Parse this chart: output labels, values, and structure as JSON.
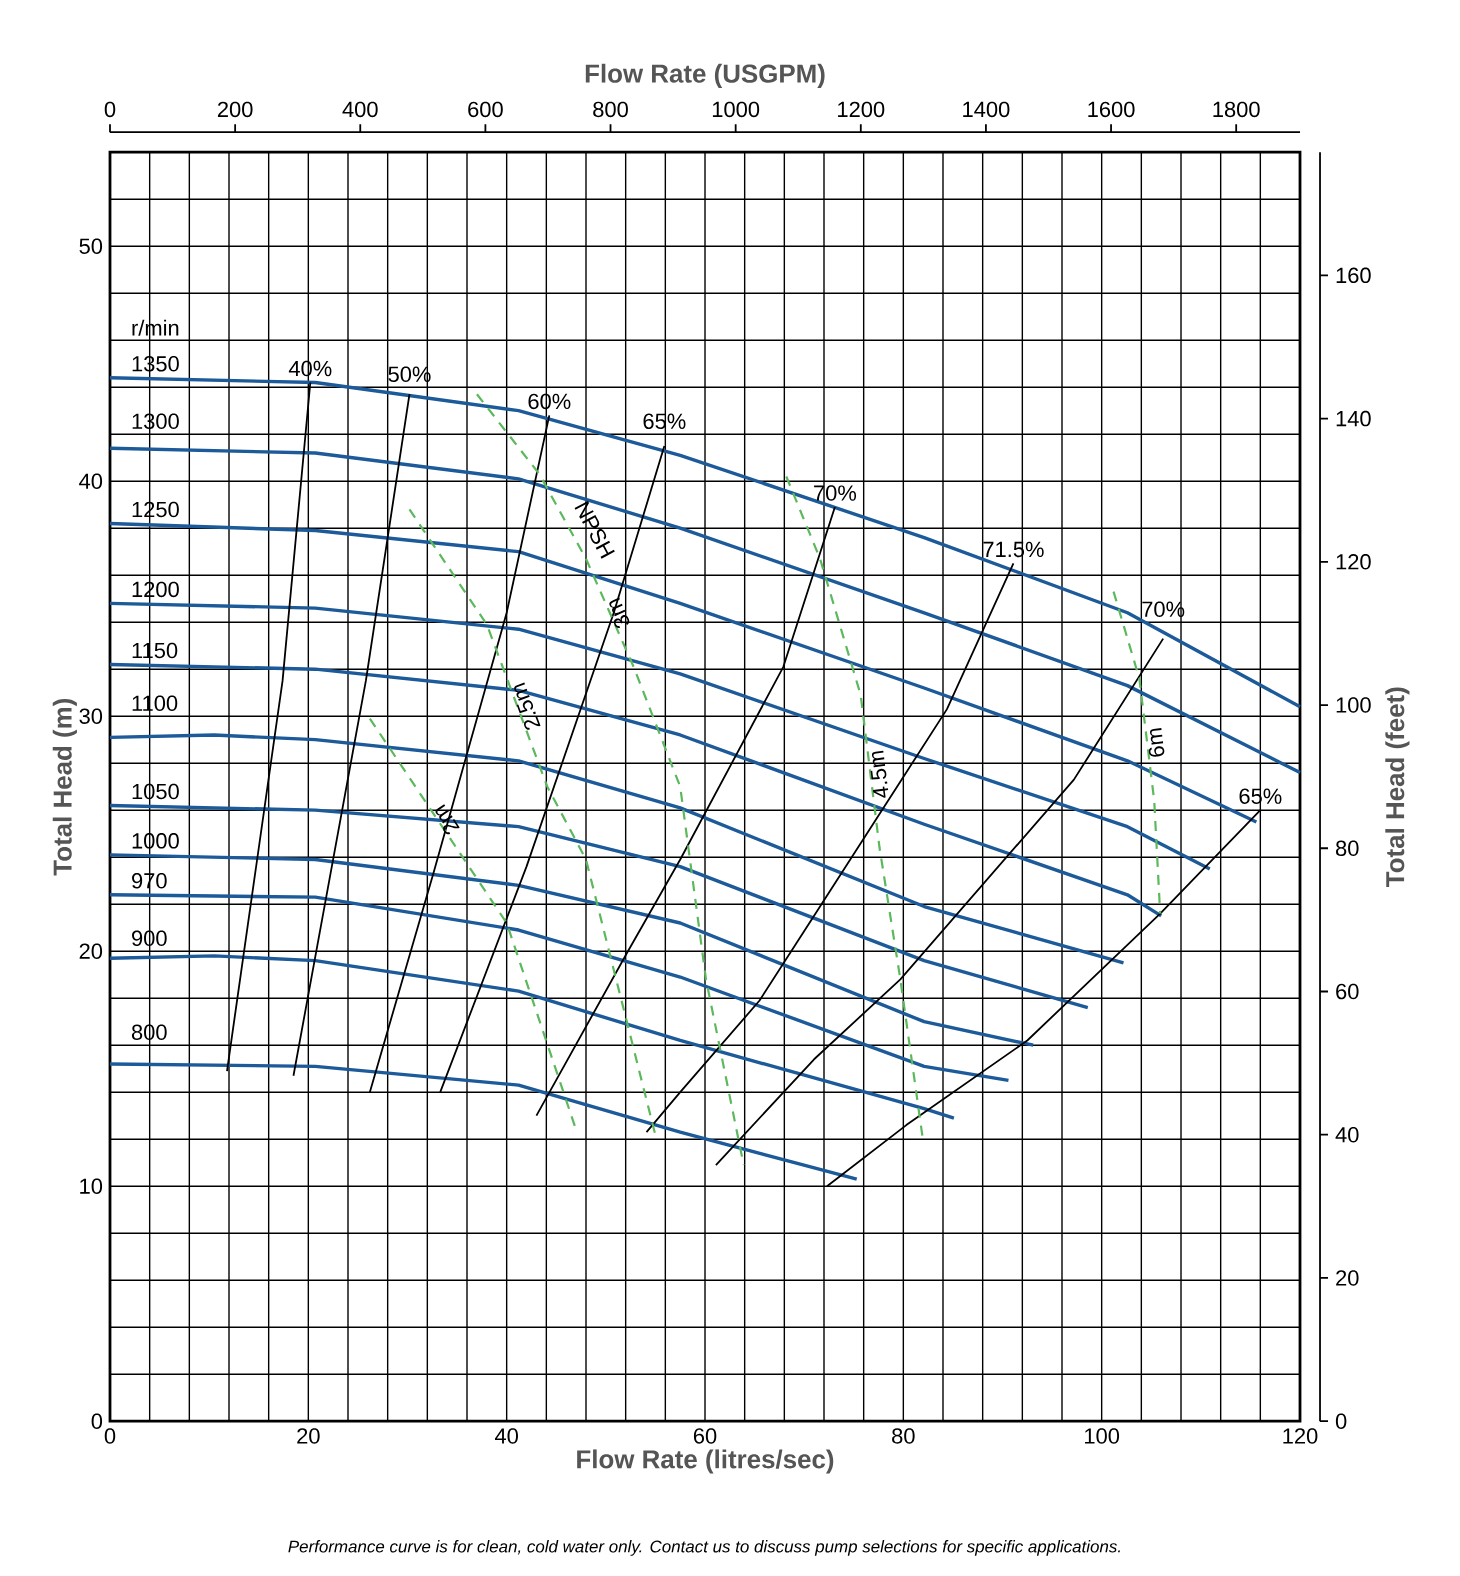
{
  "chart_data": {
    "type": "line",
    "xlabel": "Flow Rate (litres/sec)",
    "ylabel": "Total Head (m)",
    "y2label": "Total Head (feet)",
    "x2label": "Flow Rate (USGPM)",
    "xlim": [
      0,
      120
    ],
    "ylim": [
      0,
      54
    ],
    "y2lim": [
      0,
      177.2
    ],
    "x2lim": [
      0,
      1902
    ],
    "xticks": [
      0,
      {
        "value": 4,
        "label": null
      },
      {
        "value": 8,
        "label": null
      },
      {
        "value": 12,
        "label": null
      },
      {
        "value": 16,
        "label": null
      },
      20,
      {
        "value": 24,
        "label": null
      },
      {
        "value": 28,
        "label": null
      },
      {
        "value": 32,
        "label": null
      },
      {
        "value": 36,
        "label": null
      },
      40,
      {
        "value": 44,
        "label": null
      },
      {
        "value": 48,
        "label": null
      },
      {
        "value": 52,
        "label": null
      },
      {
        "value": 56,
        "label": null
      },
      60,
      {
        "value": 64,
        "label": null
      },
      {
        "value": 68,
        "label": null
      },
      {
        "value": 72,
        "label": null
      },
      {
        "value": 76,
        "label": null
      },
      80,
      {
        "value": 84,
        "label": null
      },
      {
        "value": 88,
        "label": null
      },
      {
        "value": 92,
        "label": null
      },
      {
        "value": 96,
        "label": null
      },
      100,
      {
        "value": 104,
        "label": null
      },
      {
        "value": 108,
        "label": null
      },
      {
        "value": 112,
        "label": null
      },
      {
        "value": 116,
        "label": null
      },
      120
    ],
    "yticks": [
      0,
      {
        "value": 2,
        "label": null
      },
      {
        "value": 4,
        "label": null
      },
      {
        "value": 6,
        "label": null
      },
      {
        "value": 8,
        "label": null
      },
      10,
      {
        "value": 12,
        "label": null
      },
      {
        "value": 14,
        "label": null
      },
      {
        "value": 16,
        "label": null
      },
      {
        "value": 18,
        "label": null
      },
      20,
      {
        "value": 22,
        "label": null
      },
      {
        "value": 24,
        "label": null
      },
      {
        "value": 26,
        "label": null
      },
      {
        "value": 28,
        "label": null
      },
      30,
      {
        "value": 32,
        "label": null
      },
      {
        "value": 34,
        "label": null
      },
      {
        "value": 36,
        "label": null
      },
      {
        "value": 38,
        "label": null
      },
      40,
      {
        "value": 42,
        "label": null
      },
      {
        "value": 44,
        "label": null
      },
      {
        "value": 46,
        "label": null
      },
      {
        "value": 48,
        "label": null
      },
      50,
      {
        "value": 52,
        "label": null
      },
      {
        "value": 54,
        "label": null
      }
    ],
    "y2ticks": [
      0,
      20,
      40,
      60,
      80,
      100,
      120,
      140,
      160
    ],
    "x2ticks": [
      0,
      200,
      400,
      600,
      800,
      1000,
      1200,
      1400,
      1600,
      1800
    ],
    "grid": true,
    "series": [
      {
        "name": "1350",
        "color": "#1c5a99",
        "x": [
          0,
          20.7,
          41.2,
          57.5,
          82.1,
          102.6,
          120
        ],
        "values": [
          44.4,
          44.2,
          43.0,
          41.1,
          37.6,
          34.4,
          30.4
        ]
      },
      {
        "name": "1300",
        "color": "#1c5a99",
        "x": [
          0,
          20.7,
          41.2,
          57.5,
          82.1,
          102.6,
          120
        ],
        "values": [
          41.4,
          41.2,
          40.1,
          38.0,
          34.4,
          31.3,
          27.6
        ]
      },
      {
        "name": "1250",
        "color": "#1c5a99",
        "x": [
          0,
          20.7,
          41.2,
          57.5,
          82.1,
          102.6,
          115.6
        ],
        "values": [
          38.2,
          37.9,
          37.0,
          34.8,
          31.2,
          28.1,
          25.5
        ]
      },
      {
        "name": "1200",
        "color": "#1c5a99",
        "x": [
          0,
          20.7,
          41.2,
          57.5,
          82.1,
          102.6,
          110.9
        ],
        "values": [
          34.8,
          34.6,
          33.7,
          31.8,
          28.2,
          25.3,
          23.5
        ]
      },
      {
        "name": "1150",
        "color": "#1c5a99",
        "x": [
          0,
          20.7,
          41.2,
          57.5,
          82.1,
          102.6,
          106.0
        ],
        "values": [
          32.2,
          32.0,
          31.1,
          29.2,
          25.4,
          22.4,
          21.5
        ]
      },
      {
        "name": "1100",
        "color": "#1c5a99",
        "x": [
          0,
          10.5,
          20.7,
          41.2,
          57.5,
          82.1,
          102.2
        ],
        "values": [
          29.1,
          29.2,
          29.0,
          28.1,
          26.1,
          21.9,
          19.5
        ]
      },
      {
        "name": "1050",
        "color": "#1c5a99",
        "x": [
          0,
          20.7,
          41.2,
          57.5,
          82.1,
          98.6
        ],
        "values": [
          26.2,
          26.0,
          25.3,
          23.6,
          19.6,
          17.6
        ]
      },
      {
        "name": "1000",
        "color": "#1c5a99",
        "x": [
          0,
          20.7,
          41.2,
          57.5,
          82.1,
          93.1
        ],
        "values": [
          24.1,
          23.9,
          22.8,
          21.2,
          17.0,
          16.0
        ]
      },
      {
        "name": "970",
        "color": "#1c5a99",
        "x": [
          0,
          20.7,
          41.2,
          57.5,
          82.1,
          90.6
        ],
        "values": [
          22.4,
          22.3,
          20.9,
          18.9,
          15.1,
          14.5
        ]
      },
      {
        "name": "900",
        "color": "#1c5a99",
        "x": [
          0,
          10.5,
          20.7,
          41.2,
          57.5,
          82.1,
          85.1
        ],
        "values": [
          19.7,
          19.8,
          19.6,
          18.3,
          16.2,
          13.3,
          12.9
        ]
      },
      {
        "name": "800",
        "color": "#1c5a99",
        "x": [
          0,
          20.7,
          41.2,
          57.5,
          75.3
        ],
        "values": [
          15.2,
          15.1,
          14.3,
          12.3,
          10.3
        ]
      },
      {
        "name": "40%",
        "color": "#000000",
        "x": [
          11.8,
          17.4,
          20.2
        ],
        "values": [
          14.9,
          31.5,
          44.2
        ]
      },
      {
        "name": "50%",
        "color": "#000000",
        "x": [
          18.5,
          25.8,
          30.2
        ],
        "values": [
          14.7,
          31.5,
          43.7
        ]
      },
      {
        "name": "60%",
        "color": "#000000",
        "x": [
          26.2,
          32.6,
          40.0,
          44.3
        ],
        "values": [
          14.0,
          23.3,
          34.4,
          42.8
        ]
      },
      {
        "name": "65%",
        "color": "#000000",
        "x": [
          33.3,
          42.0,
          50.8,
          55.9
        ],
        "values": [
          14.0,
          23.6,
          34.4,
          41.5
        ]
      },
      {
        "name": "70%",
        "color": "#000000",
        "x": [
          43.0,
          52.1,
          57.5,
          67.9,
          73.1
        ],
        "values": [
          13.0,
          19.9,
          23.9,
          32.1,
          38.9
        ]
      },
      {
        "name": "71.5%",
        "color": "#000000",
        "x": [
          54.1,
          57.5,
          65.5,
          71.6,
          84.4,
          91.1
        ],
        "values": [
          12.3,
          14.0,
          17.9,
          21.9,
          30.3,
          36.5
        ]
      },
      {
        "name": "70%",
        "color": "#000000",
        "x": [
          61.1,
          71.0,
          79.7,
          97.2,
          106.2
        ],
        "values": [
          10.9,
          15.4,
          18.8,
          27.3,
          33.3
        ]
      },
      {
        "name": "65%",
        "color": "#000000",
        "x": [
          72.3,
          80.3,
          92.5,
          105.9,
          116.0
        ],
        "values": [
          10.0,
          12.6,
          16.2,
          21.6,
          26.0
        ]
      },
      {
        "name": "2m",
        "color": "#5cb85c",
        "line_style": "dashed",
        "x": [
          26.2,
          40.0,
          47.0
        ],
        "values": [
          29.9,
          21.2,
          12.4
        ]
      },
      {
        "name": "2.5m",
        "color": "#5cb85c",
        "line_style": "dashed",
        "x": [
          30.2,
          38.0,
          44.1,
          48.0,
          55.1
        ],
        "values": [
          38.8,
          33.9,
          27.0,
          23.9,
          12.0
        ]
      },
      {
        "name": "3m",
        "color": "#5cb85c",
        "line_style": "dashed",
        "x": [
          37.0,
          43.3,
          48.0,
          52.8,
          57.5,
          60.1,
          63.9
        ],
        "values": [
          43.7,
          40.3,
          36.7,
          32.1,
          27.0,
          18.8,
          10.9
        ]
      },
      {
        "name": "4.5m",
        "color": "#5cb85c",
        "line_style": "dashed",
        "x": [
          68.2,
          71.6,
          75.7,
          77.6,
          79.7,
          82.0
        ],
        "values": [
          40.2,
          36.7,
          30.9,
          24.4,
          18.8,
          11.9
        ]
      },
      {
        "name": "6m",
        "color": "#5cb85c",
        "line_style": "dashed",
        "x": [
          101.2,
          103.8,
          105.3,
          105.9
        ],
        "values": [
          35.3,
          31.6,
          26.4,
          21.6
        ]
      }
    ],
    "annotations": [
      "r/min",
      {
        "text": "NPSH",
        "x": 48.1,
        "y": 37.5
      },
      "*Performance curve is for clean, cold water only. Contact us to discuss pump selections for specific applications.*"
    ]
  }
}
